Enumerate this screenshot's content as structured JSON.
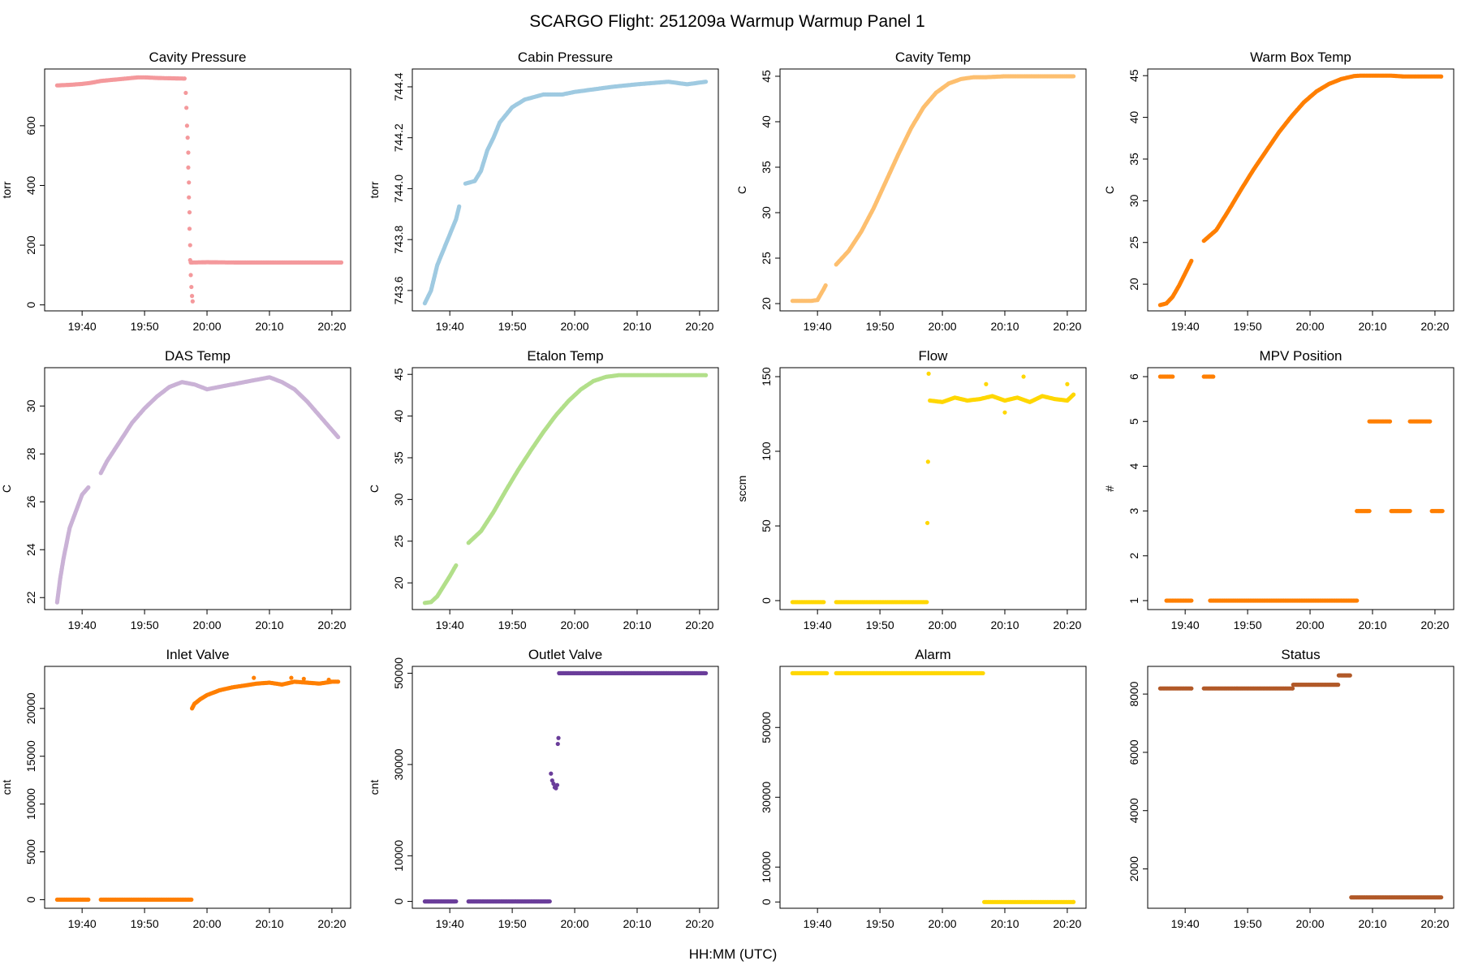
{
  "page": {
    "title": "SCARGO Flight: 251209a  Warmup Warmup  Panel 1",
    "xlabel": "HH:MM (UTC)"
  },
  "time_axis": {
    "unit": "minutes since 00:00 UTC",
    "xlim": [
      1174,
      1223
    ],
    "ticks": [
      1180,
      1190,
      1200,
      1210,
      1220
    ],
    "tick_labels": [
      "19:40",
      "19:50",
      "20:00",
      "20:10",
      "20:20"
    ]
  },
  "chart_data": [
    {
      "type": "scatter",
      "title": "Cavity Pressure",
      "ylabel": "torr",
      "color": "#F4999C",
      "ylim": [
        -20,
        790
      ],
      "yticks": [
        0,
        200,
        400,
        600
      ],
      "series": [
        {
          "name": "main",
          "x": [
            1176,
            1178,
            1180,
            1181.5,
            1183,
            1185,
            1188,
            1189,
            1190,
            1192,
            1194,
            1196.2,
            1196.4
          ],
          "y": [
            735,
            737,
            740,
            744,
            750,
            754,
            760,
            762,
            762,
            760,
            759,
            758,
            758
          ]
        },
        {
          "name": "drop",
          "x": [
            1196.6,
            1196.7,
            1196.8,
            1196.9,
            1197.0,
            1197.0,
            1197.1,
            1197.1,
            1197.2,
            1197.2,
            1197.3,
            1197.3,
            1197.4,
            1197.5,
            1197.6,
            1197.7
          ],
          "y": [
            710,
            660,
            600,
            560,
            510,
            460,
            410,
            360,
            310,
            255,
            200,
            150,
            100,
            60,
            30,
            12
          ]
        },
        {
          "name": "plateau",
          "x": [
            1197.4,
            1200,
            1205,
            1210,
            1215,
            1220,
            1221.5
          ],
          "y": [
            142,
            143,
            142,
            142,
            142,
            142,
            142
          ]
        }
      ]
    },
    {
      "type": "scatter",
      "title": "Cabin Pressure",
      "ylabel": "torr",
      "color": "#9FCAE1",
      "ylim": [
        743.52,
        744.47
      ],
      "yticks": [
        743.6,
        743.8,
        744.0,
        744.2,
        744.4
      ],
      "series": [
        {
          "name": "part1",
          "x": [
            1176,
            1177,
            1178,
            1179,
            1180,
            1181,
            1181.5
          ],
          "y": [
            743.55,
            743.6,
            743.7,
            743.76,
            743.82,
            743.88,
            743.93
          ]
        },
        {
          "name": "part2",
          "x": [
            1182.5,
            1184,
            1185,
            1186,
            1187,
            1188,
            1190,
            1192,
            1195,
            1198,
            1200,
            1203,
            1206,
            1210,
            1215,
            1218,
            1221
          ],
          "y": [
            744.02,
            744.03,
            744.07,
            744.15,
            744.2,
            744.26,
            744.32,
            744.35,
            744.37,
            744.37,
            744.38,
            744.39,
            744.4,
            744.41,
            744.42,
            744.41,
            744.42
          ]
        }
      ]
    },
    {
      "type": "scatter",
      "title": "Cavity Temp",
      "ylabel": "C",
      "color": "#FDBF6F",
      "ylim": [
        19.2,
        45.8
      ],
      "yticks": [
        20,
        25,
        30,
        35,
        40,
        45
      ],
      "series": [
        {
          "name": "part1",
          "x": [
            1176,
            1177,
            1178,
            1179,
            1180,
            1180.5,
            1181,
            1181.3
          ],
          "y": [
            20.3,
            20.3,
            20.3,
            20.3,
            20.4,
            21.0,
            21.6,
            22.0
          ]
        },
        {
          "name": "part2",
          "x": [
            1183,
            1185,
            1187,
            1189,
            1191,
            1193,
            1195,
            1197,
            1199,
            1201,
            1203,
            1205,
            1207,
            1210,
            1215,
            1221
          ],
          "y": [
            24.3,
            25.8,
            27.9,
            30.5,
            33.5,
            36.5,
            39.3,
            41.6,
            43.2,
            44.2,
            44.7,
            44.9,
            44.9,
            45.0,
            45.0,
            45.0
          ]
        }
      ]
    },
    {
      "type": "scatter",
      "title": "Warm Box Temp",
      "ylabel": "C",
      "color": "#FF7F00",
      "ylim": [
        16.8,
        45.8
      ],
      "yticks": [
        20,
        25,
        30,
        35,
        40,
        45
      ],
      "series": [
        {
          "name": "part1",
          "x": [
            1176,
            1177,
            1178,
            1179,
            1180,
            1181
          ],
          "y": [
            17.5,
            17.7,
            18.5,
            19.8,
            21.3,
            22.8
          ]
        },
        {
          "name": "part2",
          "x": [
            1183,
            1185,
            1187,
            1189,
            1191,
            1193,
            1195,
            1197,
            1199,
            1201,
            1203,
            1205,
            1207,
            1208,
            1210,
            1213,
            1215,
            1218,
            1221
          ],
          "y": [
            25.2,
            26.5,
            28.9,
            31.4,
            33.8,
            36.0,
            38.2,
            40.1,
            41.8,
            43.1,
            44.0,
            44.6,
            44.95,
            45.0,
            45.0,
            45.0,
            44.9,
            44.9,
            44.9
          ]
        }
      ]
    },
    {
      "type": "scatter",
      "title": "DAS Temp",
      "ylabel": "C",
      "color": "#CAB2D6",
      "ylim": [
        21.5,
        31.6
      ],
      "yticks": [
        22,
        24,
        26,
        28,
        30
      ],
      "series": [
        {
          "name": "part1",
          "x": [
            1176,
            1176.5,
            1177,
            1178,
            1179,
            1180,
            1181
          ],
          "y": [
            21.8,
            22.8,
            23.6,
            24.9,
            25.6,
            26.3,
            26.6
          ]
        },
        {
          "name": "part2",
          "x": [
            1183,
            1184,
            1186,
            1188,
            1190,
            1192,
            1194,
            1196,
            1198,
            1200,
            1202,
            1204,
            1206,
            1208,
            1210,
            1212,
            1214,
            1216,
            1218,
            1220,
            1221
          ],
          "y": [
            27.2,
            27.7,
            28.5,
            29.3,
            29.9,
            30.4,
            30.8,
            31.0,
            30.9,
            30.7,
            30.8,
            30.9,
            31.0,
            31.1,
            31.2,
            31.0,
            30.7,
            30.2,
            29.6,
            29.0,
            28.7
          ]
        }
      ]
    },
    {
      "type": "scatter",
      "title": "Etalon Temp",
      "ylabel": "C",
      "color": "#B2DF8A",
      "ylim": [
        16.8,
        45.8
      ],
      "yticks": [
        20,
        25,
        30,
        35,
        40,
        45
      ],
      "series": [
        {
          "name": "part1",
          "x": [
            1176,
            1177,
            1178,
            1179,
            1180,
            1181
          ],
          "y": [
            17.6,
            17.7,
            18.4,
            19.6,
            20.8,
            22.1
          ]
        },
        {
          "name": "part2",
          "x": [
            1183,
            1185,
            1187,
            1189,
            1191,
            1193,
            1195,
            1197,
            1199,
            1201,
            1203,
            1205,
            1207,
            1209,
            1212,
            1216,
            1221
          ],
          "y": [
            24.8,
            26.2,
            28.5,
            31.1,
            33.6,
            35.9,
            38.1,
            40.1,
            41.8,
            43.2,
            44.2,
            44.7,
            44.9,
            44.9,
            44.9,
            44.9,
            44.9
          ]
        }
      ]
    },
    {
      "type": "scatter",
      "title": "Flow",
      "ylabel": "sccm",
      "color": "#FFD700",
      "ylim": [
        -6,
        156
      ],
      "yticks": [
        0,
        50,
        100,
        150
      ],
      "series": [
        {
          "name": "low1",
          "x": [
            1176,
            1178,
            1180,
            1181
          ],
          "y": [
            -1,
            -1,
            -1,
            -1
          ]
        },
        {
          "name": "low2",
          "x": [
            1183,
            1186,
            1189,
            1192,
            1195,
            1197.5
          ],
          "y": [
            -1,
            -1,
            -1,
            -1,
            -1,
            -1
          ]
        },
        {
          "name": "jump",
          "x": [
            1197.6,
            1197.7,
            1197.8
          ],
          "y": [
            52,
            93,
            152
          ]
        },
        {
          "name": "high",
          "x": [
            1198,
            1200,
            1202,
            1204,
            1206,
            1208,
            1210,
            1212,
            1214,
            1216,
            1218,
            1220,
            1221
          ],
          "y": [
            134,
            133,
            136,
            134,
            135,
            137,
            134,
            136,
            133,
            137,
            135,
            134,
            138
          ]
        },
        {
          "name": "outliers",
          "x": [
            1207,
            1210,
            1213,
            1220
          ],
          "y": [
            145,
            126,
            150,
            145
          ]
        }
      ]
    },
    {
      "type": "scatter",
      "title": "MPV Position",
      "ylabel": "#",
      "color": "#FF7F00",
      "ylim": [
        0.8,
        6.2
      ],
      "yticks": [
        1,
        2,
        3,
        4,
        5,
        6
      ],
      "series": [
        {
          "name": "pos6a",
          "x": [
            1176,
            1177,
            1178
          ],
          "y": [
            6,
            6,
            6
          ]
        },
        {
          "name": "pos6b",
          "x": [
            1183,
            1183.8,
            1184.5
          ],
          "y": [
            6,
            6,
            6
          ]
        },
        {
          "name": "pos1a",
          "x": [
            1177,
            1178.5,
            1180,
            1181
          ],
          "y": [
            1,
            1,
            1,
            1
          ]
        },
        {
          "name": "pos1b",
          "x": [
            1184,
            1190,
            1195,
            1200,
            1205,
            1207.5
          ],
          "y": [
            1,
            1,
            1,
            1,
            1,
            1
          ]
        },
        {
          "name": "pos3a",
          "x": [
            1207.5,
            1208.5,
            1209.5
          ],
          "y": [
            3,
            3,
            3
          ]
        },
        {
          "name": "pos3b",
          "x": [
            1213,
            1214.5,
            1216
          ],
          "y": [
            3,
            3,
            3
          ]
        },
        {
          "name": "pos3c",
          "x": [
            1219.5,
            1220.5,
            1221.2
          ],
          "y": [
            3,
            3,
            3
          ]
        },
        {
          "name": "pos5a",
          "x": [
            1209.5,
            1211,
            1212.8
          ],
          "y": [
            5,
            5,
            5
          ]
        },
        {
          "name": "pos5b",
          "x": [
            1216,
            1217.5,
            1219.2
          ],
          "y": [
            5,
            5,
            5
          ]
        }
      ]
    },
    {
      "type": "scatter",
      "title": "Inlet Valve",
      "ylabel": "cnt",
      "color": "#FF7F00",
      "ylim": [
        -900,
        24400
      ],
      "yticks": [
        0,
        5000,
        10000,
        15000,
        20000
      ],
      "yticklabels": [
        "0",
        "5000",
        "10000",
        "15000",
        "20000"
      ],
      "series": [
        {
          "name": "zero1",
          "x": [
            1176,
            1178,
            1180,
            1181
          ],
          "y": [
            0,
            0,
            0,
            0
          ]
        },
        {
          "name": "zero2",
          "x": [
            1183,
            1186,
            1189,
            1192,
            1195,
            1197.5
          ],
          "y": [
            0,
            0,
            0,
            0,
            0,
            0
          ]
        },
        {
          "name": "rise",
          "x": [
            1197.6,
            1198,
            1199,
            1200,
            1202,
            1204,
            1206,
            1208,
            1210,
            1212,
            1214,
            1216,
            1218,
            1220,
            1221
          ],
          "y": [
            20000,
            20500,
            21000,
            21400,
            21900,
            22200,
            22400,
            22600,
            22700,
            22500,
            22800,
            22700,
            22600,
            22800,
            22800
          ]
        },
        {
          "name": "spikes",
          "x": [
            1207.5,
            1213.5,
            1215.5,
            1219.5
          ],
          "y": [
            23200,
            23200,
            23100,
            23000
          ]
        }
      ]
    },
    {
      "type": "scatter",
      "title": "Outlet Valve",
      "ylabel": "cnt",
      "color": "#6A3D9A",
      "ylim": [
        -1500,
        51500
      ],
      "yticks": [
        0,
        10000,
        30000,
        50000
      ],
      "yticklabels": [
        "0",
        "10000",
        "30000",
        "50000"
      ],
      "series": [
        {
          "name": "zero1",
          "x": [
            1176,
            1178,
            1180,
            1181
          ],
          "y": [
            0,
            0,
            0,
            0
          ]
        },
        {
          "name": "zero2",
          "x": [
            1183,
            1186,
            1189,
            1192,
            1195,
            1196
          ],
          "y": [
            0,
            0,
            0,
            0,
            0,
            0
          ]
        },
        {
          "name": "mid",
          "x": [
            1196.2,
            1196.4,
            1196.6,
            1196.8,
            1197.0,
            1197.2,
            1197.3,
            1197.4
          ],
          "y": [
            28000,
            26500,
            25800,
            25000,
            24800,
            25500,
            34500,
            35800
          ]
        },
        {
          "name": "high",
          "x": [
            1197.5,
            1200,
            1205,
            1210,
            1215,
            1221
          ],
          "y": [
            50000,
            50000,
            50000,
            50000,
            50000,
            50000
          ]
        }
      ]
    },
    {
      "type": "scatter",
      "title": "Alarm",
      "ylabel": "",
      "color": "#FFD700",
      "ylim": [
        -1800,
        67500
      ],
      "yticks": [
        0,
        10000,
        30000,
        50000
      ],
      "yticklabels": [
        "0",
        "10000",
        "30000",
        "50000"
      ],
      "series": [
        {
          "name": "high1",
          "x": [
            1176,
            1178,
            1180,
            1181.5
          ],
          "y": [
            65535,
            65535,
            65535,
            65535
          ]
        },
        {
          "name": "high2",
          "x": [
            1183,
            1188,
            1193,
            1198,
            1203,
            1206.5
          ],
          "y": [
            65535,
            65535,
            65535,
            65535,
            65535,
            65535
          ]
        },
        {
          "name": "zero",
          "x": [
            1206.7,
            1210,
            1215,
            1220,
            1221
          ],
          "y": [
            0,
            0,
            0,
            0,
            0
          ]
        }
      ]
    },
    {
      "type": "scatter",
      "title": "Status",
      "ylabel": "",
      "color": "#B15928",
      "ylim": [
        650,
        8950
      ],
      "yticks": [
        2000,
        4000,
        6000,
        8000
      ],
      "yticklabels": [
        "2000",
        "4000",
        "6000",
        "8000"
      ],
      "series": [
        {
          "name": "s1",
          "x": [
            1176,
            1178,
            1180,
            1181
          ],
          "y": [
            8192,
            8192,
            8192,
            8192
          ]
        },
        {
          "name": "s2",
          "x": [
            1183,
            1186,
            1189,
            1192,
            1195,
            1197.2
          ],
          "y": [
            8192,
            8192,
            8192,
            8192,
            8192,
            8192
          ]
        },
        {
          "name": "s3",
          "x": [
            1197.3,
            1199,
            1201,
            1203,
            1204.5
          ],
          "y": [
            8320,
            8320,
            8320,
            8320,
            8320
          ]
        },
        {
          "name": "s4",
          "x": [
            1204.6,
            1205.5,
            1206.4
          ],
          "y": [
            8640,
            8640,
            8640
          ]
        },
        {
          "name": "s5",
          "x": [
            1206.6,
            1210,
            1215,
            1221
          ],
          "y": [
            1024,
            1024,
            1024,
            1024
          ]
        }
      ]
    }
  ]
}
